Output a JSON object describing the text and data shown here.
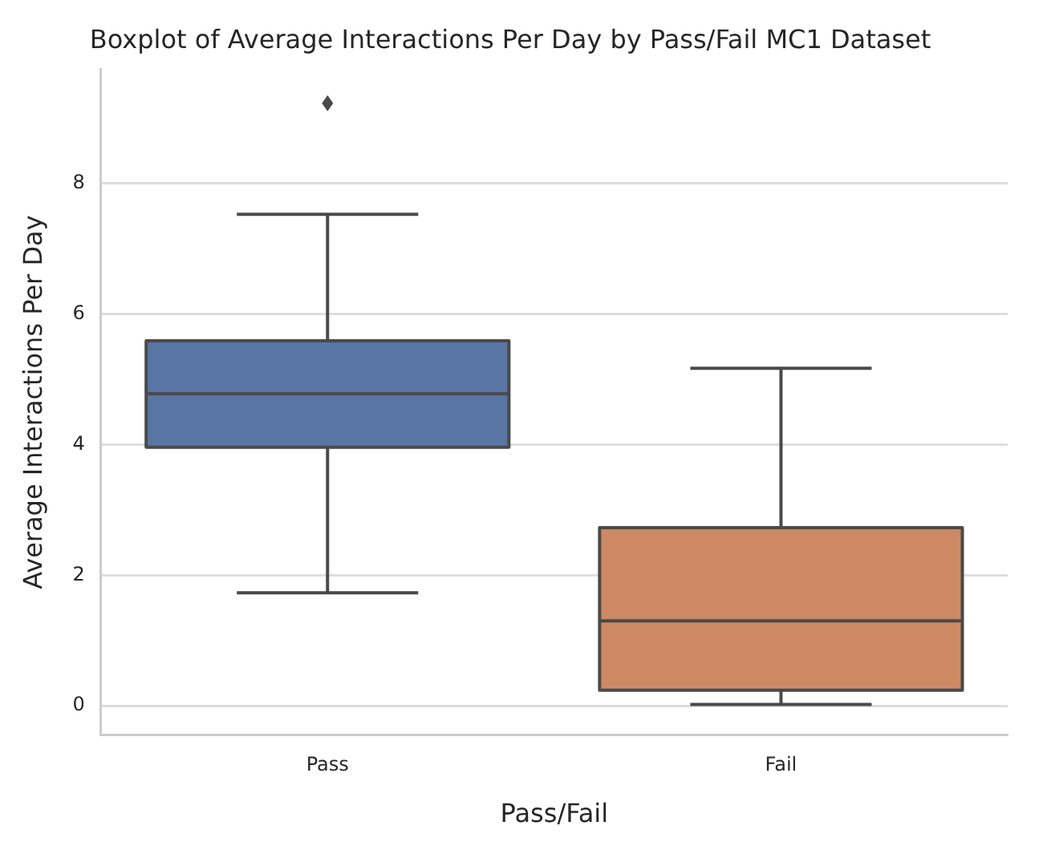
{
  "chart_data": {
    "type": "box",
    "title": "Boxplot of Average Interactions Per Day by Pass/Fail MC1 Dataset",
    "xlabel": "Pass/Fail",
    "ylabel": "Average Interactions Per Day",
    "categories": [
      "Pass",
      "Fail"
    ],
    "colors": [
      "#5875a4",
      "#cc8963"
    ],
    "boxes": [
      {
        "low": 1.73,
        "q1": 3.96,
        "median": 4.78,
        "q3": 5.59,
        "high": 7.53,
        "outliers": [
          9.23
        ]
      },
      {
        "low": 0.02,
        "q1": 0.24,
        "median": 1.3,
        "q3": 2.73,
        "high": 5.17
      }
    ],
    "ylim": [
      -0.45,
      9.75
    ],
    "yticks": [
      0,
      2,
      4,
      6,
      8
    ],
    "grid": "y",
    "legend": false
  }
}
